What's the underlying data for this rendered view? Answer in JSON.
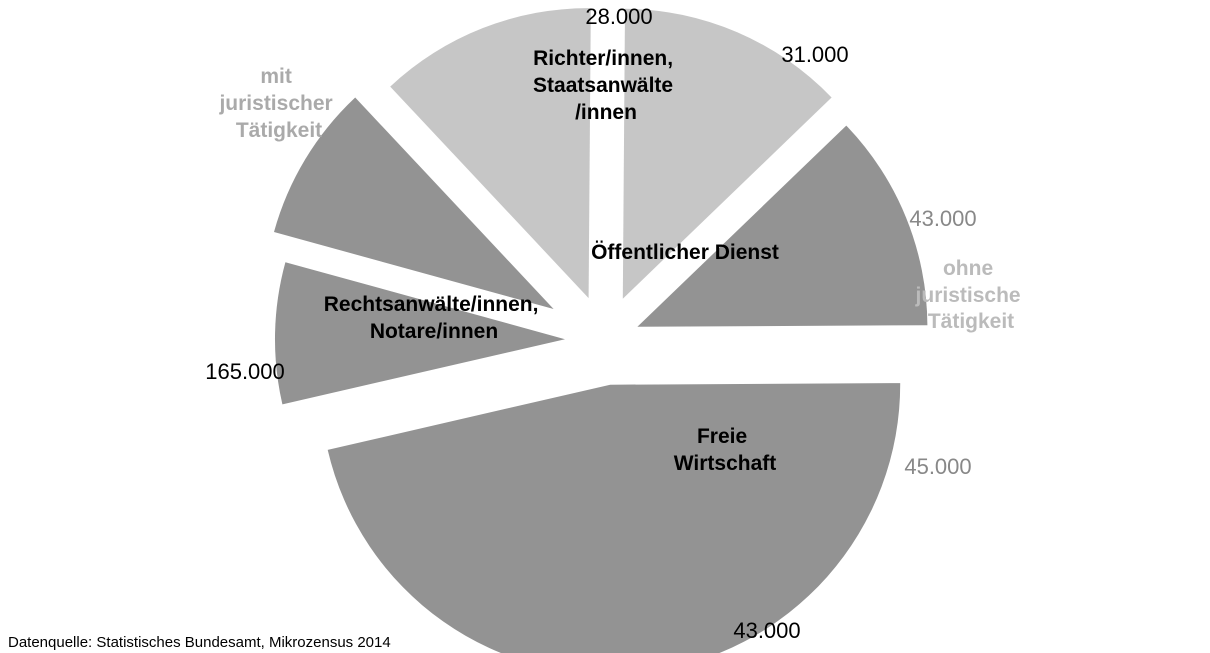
{
  "chart_data": {
    "type": "pie",
    "variant": "exploded",
    "title": "",
    "source": "Datenquelle: Statistisches Bundesamt, Mikrozensus 2014",
    "groups": [
      {
        "name": "mit juristischer Tätigkeit",
        "lines": [
          "mit",
          "juristischer",
          "Tätigkeit"
        ],
        "color": "#999999"
      },
      {
        "name": "ohne juristische Tätigkeit",
        "lines": [
          "ohne",
          "juristische",
          "Tätigkeit"
        ],
        "color": "#aaaaaa"
      }
    ],
    "slices": [
      {
        "label": "Richter/innen, Staatsanwälte/innen",
        "value": 28000,
        "value_label": "28.000",
        "group": "mit juristischer Tätigkeit",
        "color": "#939393",
        "value_color": "#000000"
      },
      {
        "label": "Öffentlicher Dienst (mit juristischer Tätigkeit)",
        "value": 31000,
        "value_label": "31.000",
        "group": "mit juristischer Tätigkeit",
        "color": "#939393",
        "value_color": "#000000"
      },
      {
        "label": "Öffentlicher Dienst (ohne juristische Tätigkeit)",
        "value": 43000,
        "value_label": "43.000",
        "group": "ohne juristische Tätigkeit",
        "color": "#c6c6c6",
        "value_color": "#888888"
      },
      {
        "label": "Freie Wirtschaft (ohne juristische Tätigkeit)",
        "value": 45000,
        "value_label": "45.000",
        "group": "ohne juristische Tätigkeit",
        "color": "#c6c6c6",
        "value_color": "#888888"
      },
      {
        "label": "Freie Wirtschaft (mit juristischer Tätigkeit)",
        "value": 43000,
        "value_label": "43.000",
        "group": "mit juristischer Tätigkeit",
        "color": "#939393",
        "value_color": "#000000"
      },
      {
        "label": "Rechtsanwälte/innen, Notare/innen",
        "value": 165000,
        "value_label": "165.000",
        "group": "mit juristischer Tätigkeit",
        "color": "#939393",
        "value_color": "#000000"
      }
    ],
    "category_labels": [
      {
        "name": "richter",
        "lines": [
          "Richter/innen,",
          "Staatsanwälte",
          "/innen"
        ]
      },
      {
        "name": "oeffentlich",
        "lines": [
          "Öffentlicher Dienst"
        ]
      },
      {
        "name": "freie",
        "lines": [
          "Freie",
          "Wirtschaft"
        ]
      },
      {
        "name": "rechtsanwaelte",
        "lines": [
          "Rechtsanwälte/innen,",
          "Notare/innen"
        ]
      }
    ]
  }
}
